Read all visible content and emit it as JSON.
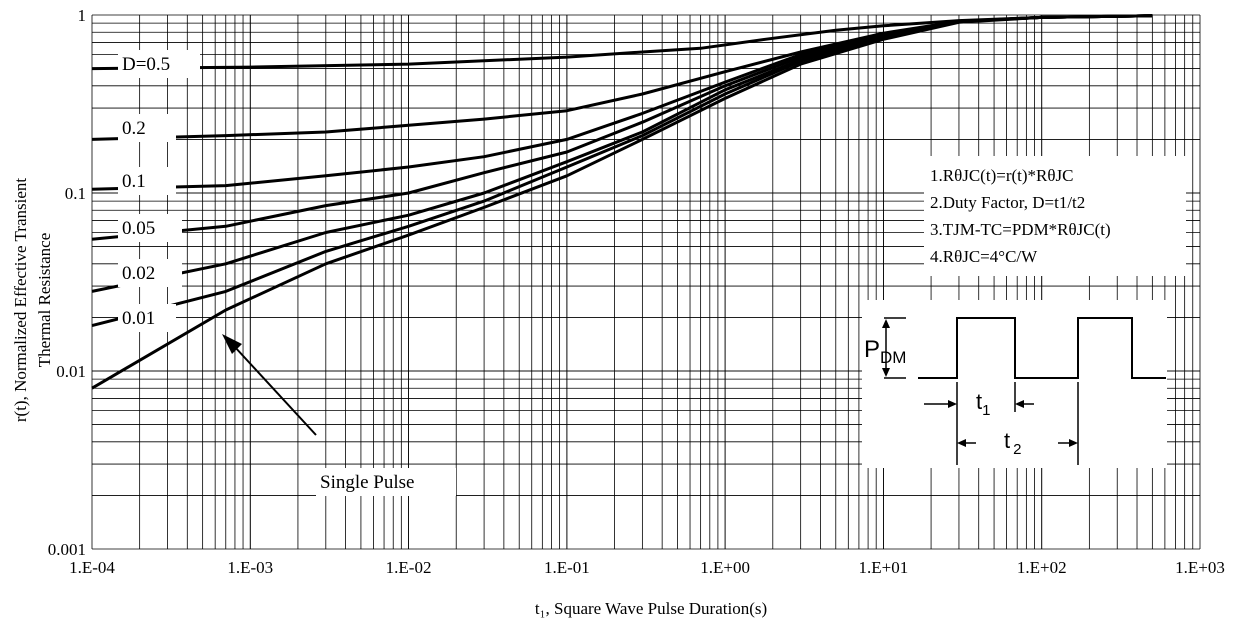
{
  "chart_data": {
    "type": "line",
    "x_scale": "log",
    "y_scale": "log",
    "xlim": [
      0.0001,
      1000
    ],
    "ylim": [
      0.001,
      1
    ],
    "xlabel": "t₁, Square Wave Pulse Duration(s)",
    "ylabel_lines": [
      "r(t), Normalized Effective Transient",
      "Thermal Resistance"
    ],
    "x_tick_labels": [
      "1.E-04",
      "1.E-03",
      "1.E-02",
      "1.E-01",
      "1.E+00",
      "1.E+01",
      "1.E+02",
      "1.E+03"
    ],
    "y_tick_labels": [
      "0.001",
      "0.01",
      "0.1",
      "1"
    ],
    "grid": true,
    "series": [
      {
        "name": "D=0.5",
        "x": [
          0.0001,
          0.001,
          0.01,
          0.1,
          0.3,
          0.7,
          2,
          5,
          10,
          30,
          100,
          500
        ],
        "y": [
          0.5,
          0.51,
          0.53,
          0.58,
          0.62,
          0.65,
          0.74,
          0.82,
          0.87,
          0.93,
          0.97,
          0.99
        ]
      },
      {
        "name": "0.2",
        "x": [
          0.0001,
          0.0007,
          0.003,
          0.01,
          0.03,
          0.1,
          0.3,
          1,
          3,
          10,
          30,
          100,
          500
        ],
        "y": [
          0.2,
          0.21,
          0.22,
          0.24,
          0.26,
          0.29,
          0.36,
          0.48,
          0.62,
          0.79,
          0.92,
          0.97,
          0.99
        ]
      },
      {
        "name": "0.1",
        "x": [
          0.0001,
          0.0007,
          0.003,
          0.01,
          0.03,
          0.1,
          0.3,
          1,
          3,
          10,
          30,
          100,
          500
        ],
        "y": [
          0.105,
          0.11,
          0.125,
          0.14,
          0.16,
          0.2,
          0.28,
          0.42,
          0.6,
          0.78,
          0.92,
          0.97,
          0.99
        ]
      },
      {
        "name": "0.05",
        "x": [
          0.0001,
          0.0007,
          0.003,
          0.01,
          0.03,
          0.1,
          0.3,
          1,
          3,
          10,
          30,
          100,
          500
        ],
        "y": [
          0.055,
          0.065,
          0.085,
          0.1,
          0.13,
          0.17,
          0.25,
          0.4,
          0.58,
          0.77,
          0.92,
          0.97,
          0.99
        ]
      },
      {
        "name": "0.02",
        "x": [
          0.0001,
          0.0007,
          0.003,
          0.01,
          0.03,
          0.1,
          0.3,
          1,
          3,
          10,
          30,
          100,
          500
        ],
        "y": [
          0.028,
          0.04,
          0.06,
          0.075,
          0.1,
          0.15,
          0.22,
          0.38,
          0.56,
          0.76,
          0.92,
          0.97,
          0.99
        ]
      },
      {
        "name": "0.01",
        "x": [
          0.0001,
          0.0007,
          0.003,
          0.01,
          0.03,
          0.1,
          0.3,
          1,
          3,
          10,
          30,
          100,
          500
        ],
        "y": [
          0.018,
          0.028,
          0.047,
          0.065,
          0.09,
          0.14,
          0.21,
          0.36,
          0.55,
          0.75,
          0.92,
          0.97,
          0.99
        ]
      },
      {
        "name": "Single Pulse",
        "x": [
          0.0001,
          0.0007,
          0.003,
          0.01,
          0.03,
          0.1,
          0.3,
          1,
          3,
          10,
          30,
          100,
          500
        ],
        "y": [
          0.008,
          0.022,
          0.04,
          0.058,
          0.083,
          0.125,
          0.2,
          0.34,
          0.53,
          0.73,
          0.91,
          0.97,
          0.99
        ]
      }
    ],
    "notes": [
      "1.RθJC(t)=r(t)*RθJC",
      "2.Duty Factor, D=t1/t2",
      "3.TJM-TC=PDM*RθJC(t)",
      "4.RθJC=4°C/W"
    ],
    "inset": {
      "pdm": "P",
      "pdm_sub": "DM",
      "t1": "t",
      "t1_sub": "1",
      "t2": "t",
      "t2_sub": "2"
    }
  }
}
